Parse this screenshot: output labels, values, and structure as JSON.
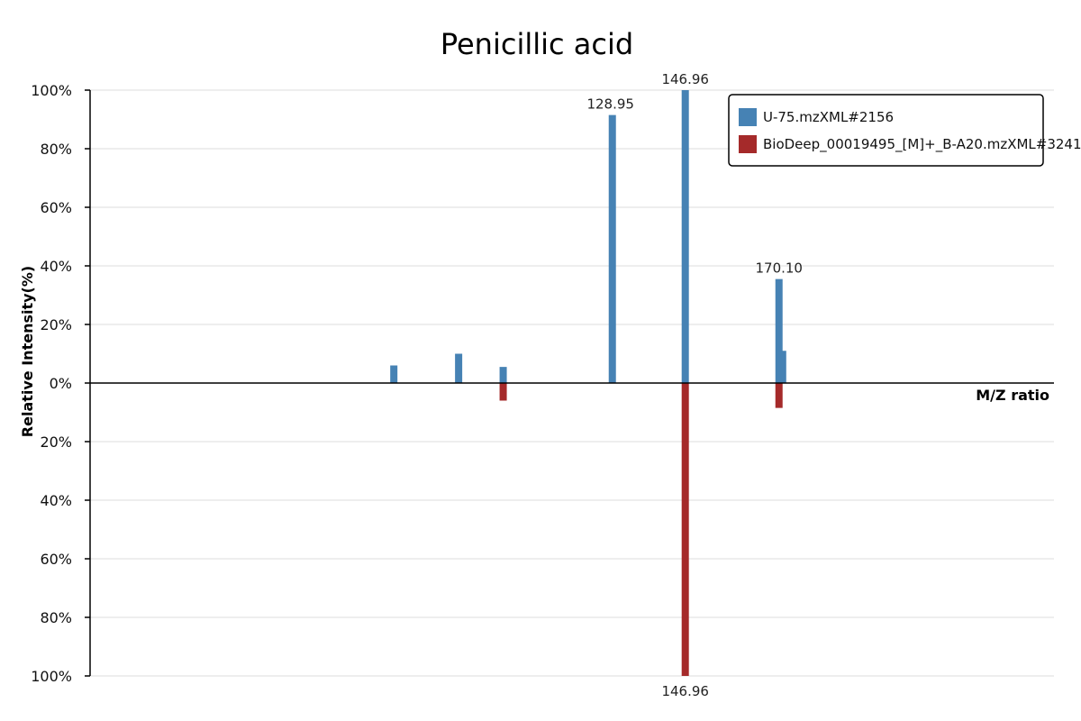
{
  "chart_data": {
    "type": "bar",
    "title": "Penicillic acid",
    "ylabel": "Relative Intensity(%)",
    "xlabel": "M/Z ratio",
    "layout": "mirror",
    "xlim": [
      0,
      238
    ],
    "ylim": [
      -100,
      100
    ],
    "y_ticks": [
      "100%",
      "80%",
      "60%",
      "40%",
      "20%",
      "0%",
      "20%",
      "40%",
      "60%",
      "80%",
      "100%"
    ],
    "grid": true,
    "legend_position": "top-right",
    "series": [
      {
        "name": "U-75.mzXML#2156",
        "color": "#4682b4",
        "direction": "up",
        "points": [
          {
            "mz": 75.0,
            "intensity": 6
          },
          {
            "mz": 91.0,
            "intensity": 10
          },
          {
            "mz": 102.0,
            "intensity": 5.5
          },
          {
            "mz": 128.95,
            "intensity": 91.5,
            "label": "128.95"
          },
          {
            "mz": 146.96,
            "intensity": 100,
            "label": "146.96"
          },
          {
            "mz": 170.1,
            "intensity": 35.5,
            "label": "170.10"
          },
          {
            "mz": 171.0,
            "intensity": 11
          }
        ]
      },
      {
        "name": "BioDeep_00019495_[M]+_B-A20.mzXML#3241",
        "color": "#a52a2a",
        "direction": "down",
        "points": [
          {
            "mz": 102.0,
            "intensity": 6
          },
          {
            "mz": 146.96,
            "intensity": 100,
            "label": "146.96"
          },
          {
            "mz": 170.1,
            "intensity": 8.5
          }
        ]
      }
    ]
  }
}
